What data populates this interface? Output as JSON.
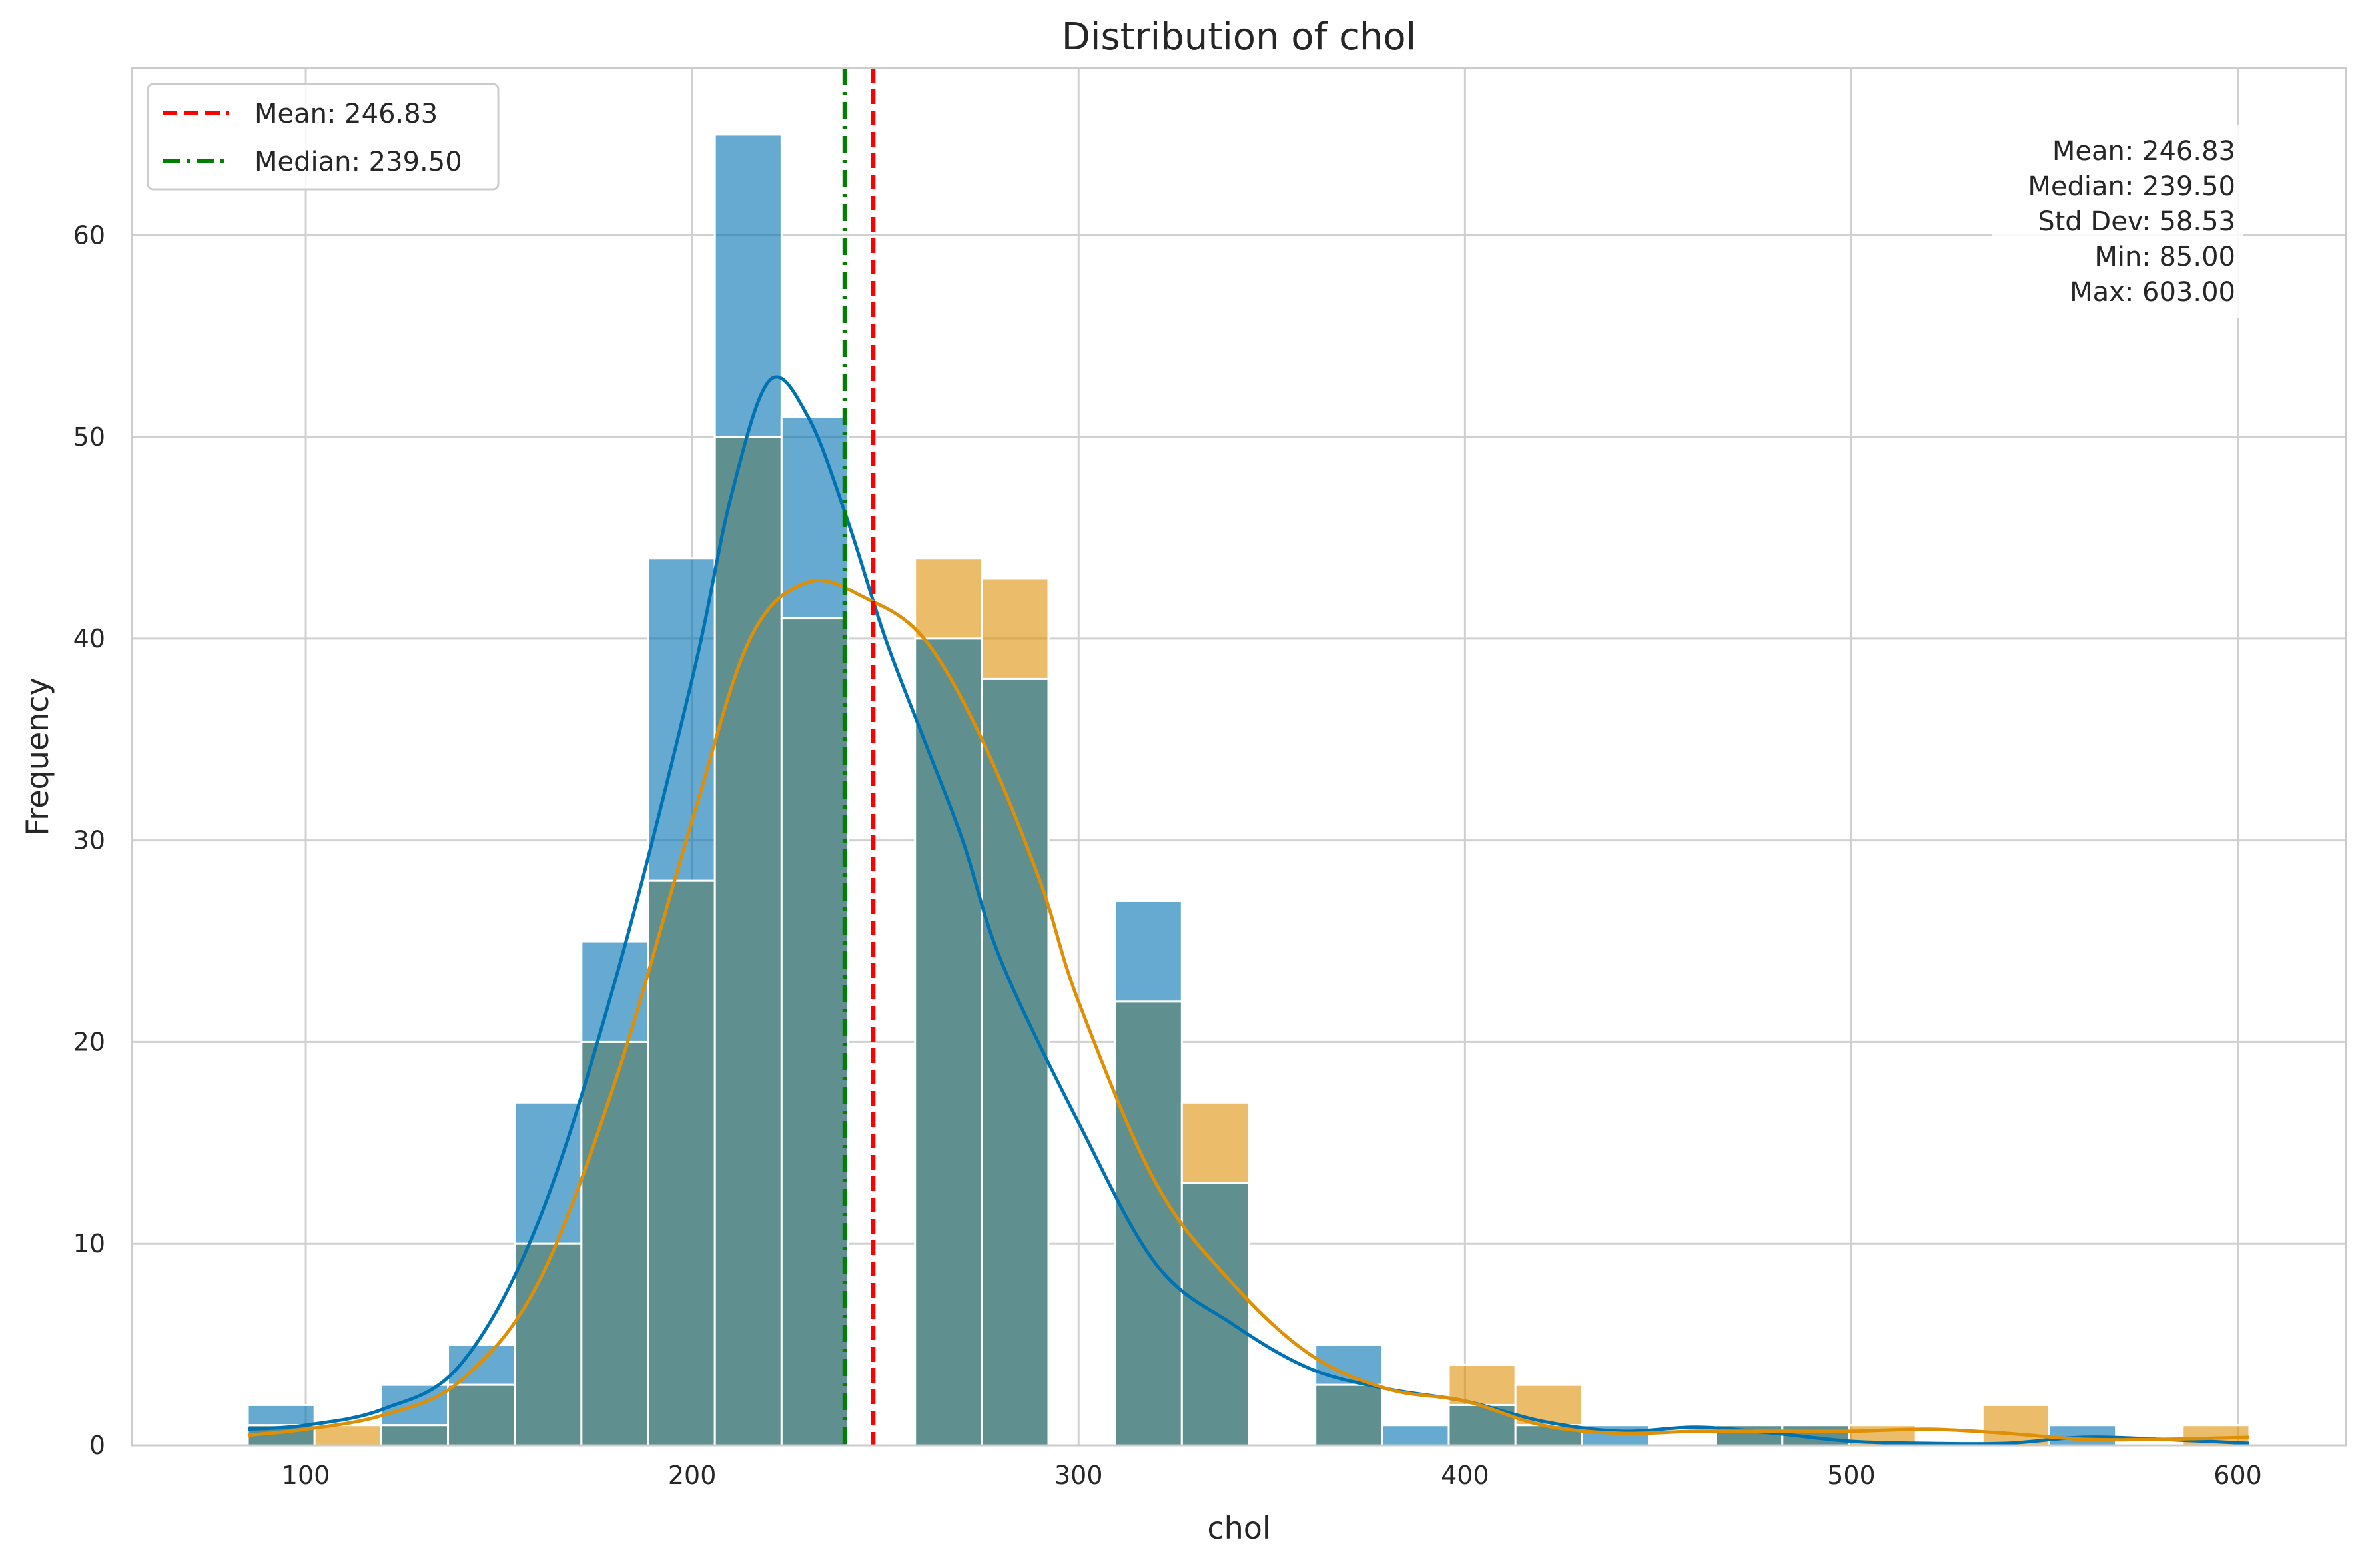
{
  "chart_data": {
    "type": "bar",
    "title": "Distribution of chol",
    "xlabel": "chol",
    "ylabel": "Frequency",
    "xlim": [
      55,
      628
    ],
    "ylim": [
      0,
      68.3
    ],
    "grid": true,
    "x_ticks": [
      100,
      200,
      300,
      400,
      500,
      600
    ],
    "y_ticks": [
      0,
      10,
      20,
      30,
      40,
      50,
      60
    ],
    "bin_edges": [
      85.0,
      102.27,
      119.53,
      136.8,
      154.07,
      171.33,
      188.6,
      205.87,
      223.13,
      240.4,
      257.67,
      274.93,
      292.2,
      309.47,
      326.73,
      344.0,
      361.27,
      378.53,
      395.8,
      413.07,
      430.33,
      447.6,
      464.87,
      482.13,
      499.4,
      516.67,
      533.93,
      551.2,
      568.47,
      585.73,
      603.0
    ],
    "series": [
      {
        "color": "#0072b2",
        "values": [
          2,
          0,
          3,
          5,
          17,
          25,
          44,
          65,
          51,
          0,
          40,
          38,
          0,
          27,
          13,
          0,
          5,
          1,
          2,
          1,
          1,
          0,
          1,
          1,
          0,
          0,
          0,
          1,
          0,
          0
        ],
        "kde": [
          [
            85,
            0.8
          ],
          [
            100,
            1.0
          ],
          [
            120,
            1.8
          ],
          [
            140,
            4.0
          ],
          [
            160,
            11.0
          ],
          [
            180,
            23.0
          ],
          [
            200,
            38.0
          ],
          [
            210,
            47.0
          ],
          [
            220,
            52.8
          ],
          [
            230,
            51.0
          ],
          [
            240,
            46.0
          ],
          [
            250,
            40.0
          ],
          [
            260,
            35.0
          ],
          [
            270,
            30.0
          ],
          [
            280,
            24.0
          ],
          [
            300,
            16.0
          ],
          [
            320,
            9.0
          ],
          [
            340,
            6.0
          ],
          [
            360,
            3.8
          ],
          [
            380,
            2.8
          ],
          [
            400,
            2.2
          ],
          [
            420,
            1.2
          ],
          [
            440,
            0.7
          ],
          [
            460,
            0.9
          ],
          [
            480,
            0.6
          ],
          [
            500,
            0.2
          ],
          [
            520,
            0.1
          ],
          [
            540,
            0.1
          ],
          [
            560,
            0.4
          ],
          [
            580,
            0.3
          ],
          [
            603,
            0.1
          ]
        ]
      },
      {
        "color": "#de8f05",
        "values": [
          1,
          1,
          1,
          3,
          10,
          20,
          28,
          50,
          41,
          0,
          44,
          43,
          0,
          22,
          17,
          0,
          3,
          0,
          4,
          3,
          0,
          0,
          1,
          1,
          1,
          0,
          2,
          0,
          0,
          1
        ],
        "kde": [
          [
            85,
            0.5
          ],
          [
            100,
            0.8
          ],
          [
            120,
            1.5
          ],
          [
            140,
            3.2
          ],
          [
            160,
            8.0
          ],
          [
            180,
            18.0
          ],
          [
            200,
            31.0
          ],
          [
            215,
            40.0
          ],
          [
            230,
            42.8
          ],
          [
            245,
            42.0
          ],
          [
            260,
            40.0
          ],
          [
            275,
            35.0
          ],
          [
            290,
            28.0
          ],
          [
            300,
            22.0
          ],
          [
            320,
            13.0
          ],
          [
            340,
            8.0
          ],
          [
            360,
            4.5
          ],
          [
            380,
            2.8
          ],
          [
            400,
            2.2
          ],
          [
            420,
            1.0
          ],
          [
            440,
            0.6
          ],
          [
            460,
            0.7
          ],
          [
            480,
            0.7
          ],
          [
            500,
            0.7
          ],
          [
            520,
            0.8
          ],
          [
            540,
            0.6
          ],
          [
            560,
            0.3
          ],
          [
            580,
            0.3
          ],
          [
            603,
            0.4
          ]
        ]
      }
    ],
    "overlap_color": "#5f8f8f",
    "vlines": [
      {
        "label": "Mean: 246.83",
        "x": 246.83,
        "color": "#ff0000",
        "style": "dashed"
      },
      {
        "label": "Median: 239.50",
        "x": 239.5,
        "color": "#008000",
        "style": "dashdot"
      }
    ],
    "legend": {
      "placement": "upper-left"
    },
    "stats_box": {
      "placement": "upper-right",
      "lines": [
        "Mean: 246.83",
        "Median: 239.50",
        "Std Dev: 58.53",
        "Min: 85.00",
        "Max: 603.00"
      ]
    }
  }
}
